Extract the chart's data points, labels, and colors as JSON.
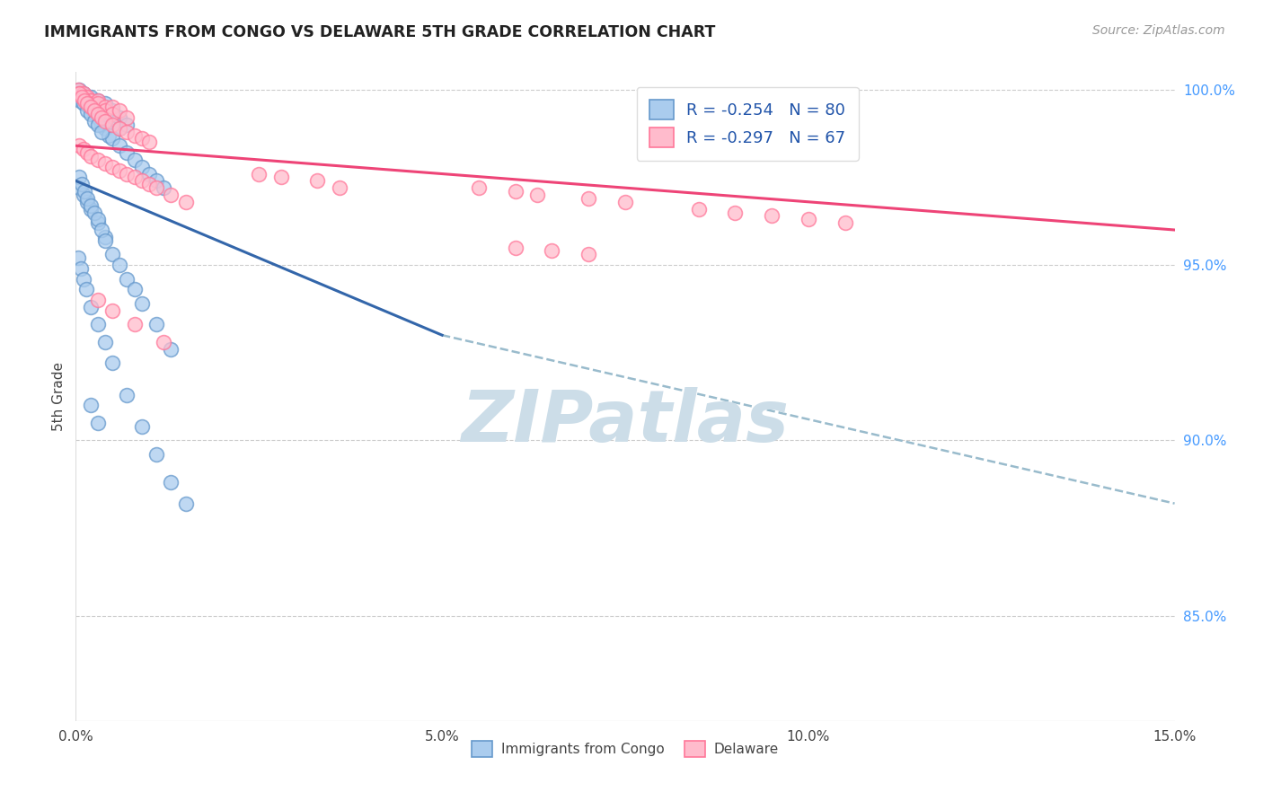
{
  "title": "IMMIGRANTS FROM CONGO VS DELAWARE 5TH GRADE CORRELATION CHART",
  "source": "Source: ZipAtlas.com",
  "ylabel": "5th Grade",
  "xlim": [
    0.0,
    0.15
  ],
  "ylim": [
    0.82,
    1.005
  ],
  "xtick_labels": [
    "0.0%",
    "5.0%",
    "10.0%",
    "15.0%"
  ],
  "xtick_vals": [
    0.0,
    0.05,
    0.1,
    0.15
  ],
  "ytick_labels_right": [
    "85.0%",
    "90.0%",
    "95.0%",
    "100.0%"
  ],
  "ytick_vals_right": [
    0.85,
    0.9,
    0.95,
    1.0
  ],
  "blue_R": -0.254,
  "blue_N": 80,
  "pink_R": -0.297,
  "pink_N": 67,
  "blue_scatter_color": "#aaccee",
  "pink_scatter_color": "#ffbbcc",
  "blue_edge_color": "#6699cc",
  "pink_edge_color": "#ff7799",
  "blue_line_color": "#3366aa",
  "pink_line_color": "#ee4477",
  "dashed_line_color": "#99bbcc",
  "watermark_color": "#ccdde8",
  "legend_label_blue": "Immigrants from Congo",
  "legend_label_pink": "Delaware",
  "blue_line_x0": 0.0,
  "blue_line_y0": 0.974,
  "blue_line_x1": 0.05,
  "blue_line_y1": 0.93,
  "dash_line_x0": 0.05,
  "dash_line_y0": 0.93,
  "dash_line_x1": 0.15,
  "dash_line_y1": 0.882,
  "pink_line_x0": 0.0,
  "pink_line_y0": 0.984,
  "pink_line_x1": 0.15,
  "pink_line_y1": 0.96,
  "blue_pts_x": [
    0.0005,
    0.001,
    0.001,
    0.0015,
    0.002,
    0.002,
    0.002,
    0.003,
    0.003,
    0.003,
    0.004,
    0.004,
    0.004,
    0.005,
    0.005,
    0.006,
    0.006,
    0.007,
    0.0003,
    0.0008,
    0.0012,
    0.0018,
    0.0025,
    0.003,
    0.0035,
    0.004,
    0.0045,
    0.005,
    0.006,
    0.007,
    0.008,
    0.009,
    0.01,
    0.011,
    0.012,
    0.0002,
    0.0006,
    0.001,
    0.0015,
    0.002,
    0.0025,
    0.003,
    0.0035,
    0.0005,
    0.001,
    0.0015,
    0.002,
    0.003,
    0.004,
    0.0004,
    0.0008,
    0.0012,
    0.0016,
    0.002,
    0.0025,
    0.003,
    0.0035,
    0.004,
    0.005,
    0.006,
    0.007,
    0.008,
    0.009,
    0.011,
    0.013,
    0.0003,
    0.0007,
    0.001,
    0.0014,
    0.002,
    0.003,
    0.004,
    0.005,
    0.007,
    0.009,
    0.011,
    0.013,
    0.015,
    0.002,
    0.003
  ],
  "blue_pts_y": [
    1.0,
    0.999,
    0.998,
    0.997,
    0.998,
    0.996,
    0.995,
    0.997,
    0.994,
    0.992,
    0.996,
    0.993,
    0.99,
    0.994,
    0.991,
    0.992,
    0.989,
    0.99,
    0.999,
    0.997,
    0.996,
    0.995,
    0.993,
    0.992,
    0.99,
    0.989,
    0.987,
    0.986,
    0.984,
    0.982,
    0.98,
    0.978,
    0.976,
    0.974,
    0.972,
    0.998,
    0.997,
    0.996,
    0.994,
    0.993,
    0.991,
    0.99,
    0.988,
    0.972,
    0.97,
    0.968,
    0.966,
    0.962,
    0.958,
    0.975,
    0.973,
    0.971,
    0.969,
    0.967,
    0.965,
    0.963,
    0.96,
    0.957,
    0.953,
    0.95,
    0.946,
    0.943,
    0.939,
    0.933,
    0.926,
    0.952,
    0.949,
    0.946,
    0.943,
    0.938,
    0.933,
    0.928,
    0.922,
    0.913,
    0.904,
    0.896,
    0.888,
    0.882,
    0.91,
    0.905
  ],
  "pink_pts_x": [
    0.0003,
    0.0006,
    0.001,
    0.0013,
    0.0016,
    0.002,
    0.002,
    0.0025,
    0.003,
    0.003,
    0.004,
    0.004,
    0.005,
    0.005,
    0.006,
    0.007,
    0.0004,
    0.0008,
    0.0012,
    0.0016,
    0.002,
    0.0025,
    0.003,
    0.0035,
    0.004,
    0.005,
    0.006,
    0.007,
    0.008,
    0.009,
    0.01,
    0.0005,
    0.001,
    0.0015,
    0.002,
    0.003,
    0.004,
    0.005,
    0.006,
    0.007,
    0.008,
    0.009,
    0.01,
    0.011,
    0.013,
    0.015,
    0.025,
    0.028,
    0.033,
    0.036,
    0.055,
    0.06,
    0.063,
    0.07,
    0.075,
    0.085,
    0.09,
    0.095,
    0.1,
    0.105,
    0.06,
    0.065,
    0.07,
    0.003,
    0.005,
    0.008,
    0.012
  ],
  "pink_pts_y": [
    1.0,
    0.999,
    0.999,
    0.998,
    0.998,
    0.997,
    0.997,
    0.996,
    0.997,
    0.996,
    0.995,
    0.994,
    0.995,
    0.993,
    0.994,
    0.992,
    0.999,
    0.998,
    0.997,
    0.996,
    0.995,
    0.994,
    0.993,
    0.992,
    0.991,
    0.99,
    0.989,
    0.988,
    0.987,
    0.986,
    0.985,
    0.984,
    0.983,
    0.982,
    0.981,
    0.98,
    0.979,
    0.978,
    0.977,
    0.976,
    0.975,
    0.974,
    0.973,
    0.972,
    0.97,
    0.968,
    0.976,
    0.975,
    0.974,
    0.972,
    0.972,
    0.971,
    0.97,
    0.969,
    0.968,
    0.966,
    0.965,
    0.964,
    0.963,
    0.962,
    0.955,
    0.954,
    0.953,
    0.94,
    0.937,
    0.933,
    0.928
  ]
}
